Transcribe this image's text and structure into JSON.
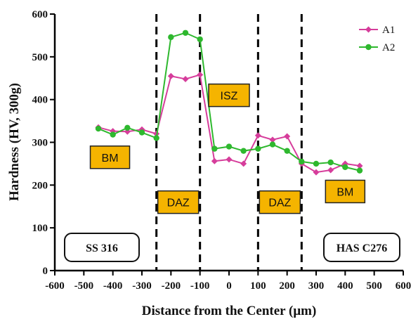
{
  "chart_data": {
    "type": "line",
    "title": "",
    "xlabel": "Distance from the Center  (μm)",
    "ylabel": "Hardness (HV, 300g)",
    "xlim": [
      -600,
      600
    ],
    "ylim": [
      0,
      600
    ],
    "x_ticks": [
      "-600",
      "-500",
      "-400",
      "-300",
      "-200",
      "-100",
      "0",
      "100",
      "200",
      "300",
      "400",
      "500",
      "600"
    ],
    "y_ticks": [
      "0",
      "100",
      "200",
      "300",
      "400",
      "500",
      "600"
    ],
    "grid": false,
    "legend_position": "top-right",
    "series": [
      {
        "name": "A1",
        "color": "#d63d9b",
        "marker": "diamond",
        "x": [
          -450,
          -400,
          -350,
          -300,
          -250,
          -200,
          -150,
          -100,
          -50,
          0,
          50,
          100,
          150,
          200,
          250,
          300,
          350,
          400,
          450
        ],
        "y": [
          335,
          326,
          325,
          330,
          320,
          455,
          448,
          458,
          256,
          260,
          250,
          316,
          306,
          314,
          250,
          230,
          235,
          250,
          245
        ]
      },
      {
        "name": "A2",
        "color": "#2eb82e",
        "marker": "circle",
        "x": [
          -450,
          -400,
          -350,
          -300,
          -250,
          -200,
          -150,
          -100,
          -50,
          0,
          50,
          100,
          150,
          200,
          250,
          300,
          350,
          400,
          450
        ],
        "y": [
          332,
          318,
          334,
          323,
          310,
          546,
          556,
          541,
          285,
          290,
          280,
          285,
          295,
          280,
          255,
          250,
          253,
          242,
          234
        ]
      }
    ],
    "boundaries": [
      -250,
      -100,
      100,
      250
    ],
    "zone_labels": [
      {
        "text": "BM",
        "x": -410,
        "y": 265
      },
      {
        "text": "DAZ",
        "x": -175,
        "y": 160
      },
      {
        "text": "ISZ",
        "x": 0,
        "y": 410
      },
      {
        "text": "DAZ",
        "x": 175,
        "y": 160
      },
      {
        "text": "BM",
        "x": 400,
        "y": 185
      }
    ],
    "material_labels": [
      {
        "text": "SS 316",
        "side": "left"
      },
      {
        "text": "HAS C276",
        "side": "right"
      }
    ]
  }
}
